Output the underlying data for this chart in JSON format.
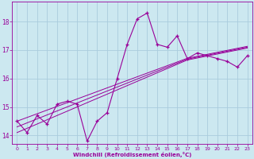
{
  "xlabel": "Windchill (Refroidissement éolien,°C)",
  "background_color": "#cce8f0",
  "line_color": "#990099",
  "grid_color": "#aaccdd",
  "x_data": [
    0,
    1,
    2,
    3,
    4,
    5,
    6,
    7,
    8,
    9,
    10,
    11,
    12,
    13,
    14,
    15,
    16,
    17,
    18,
    19,
    20,
    21,
    22,
    23
  ],
  "y_main": [
    14.5,
    14.1,
    14.7,
    14.4,
    15.1,
    15.2,
    15.1,
    13.8,
    14.5,
    14.8,
    16.0,
    17.2,
    18.1,
    18.3,
    17.2,
    17.1,
    17.5,
    16.7,
    16.9,
    16.8,
    16.7,
    16.6,
    16.4,
    16.8
  ],
  "y_reg1": [
    14.3,
    14.44,
    14.58,
    14.72,
    14.86,
    15.0,
    15.14,
    15.28,
    15.42,
    15.56,
    15.7,
    15.84,
    15.98,
    16.12,
    16.26,
    16.4,
    16.54,
    16.68,
    16.75,
    16.82,
    16.89,
    16.96,
    17.03,
    17.1
  ],
  "y_reg2": [
    14.1,
    14.25,
    14.4,
    14.55,
    14.7,
    14.85,
    15.0,
    15.15,
    15.3,
    15.45,
    15.6,
    15.75,
    15.9,
    16.05,
    16.2,
    16.35,
    16.5,
    16.65,
    16.72,
    16.79,
    16.86,
    16.93,
    17.0,
    17.07
  ],
  "y_reg3": [
    14.5,
    14.63,
    14.76,
    14.89,
    15.02,
    15.15,
    15.28,
    15.41,
    15.54,
    15.67,
    15.8,
    15.93,
    16.06,
    16.19,
    16.32,
    16.45,
    16.58,
    16.71,
    16.78,
    16.85,
    16.92,
    16.99,
    17.06,
    17.13
  ],
  "ylim": [
    13.7,
    18.7
  ],
  "yticks": [
    14,
    15,
    16,
    17,
    18
  ],
  "xticks": [
    0,
    1,
    2,
    3,
    4,
    5,
    6,
    7,
    8,
    9,
    10,
    11,
    12,
    13,
    14,
    15,
    16,
    17,
    18,
    19,
    20,
    21,
    22,
    23
  ]
}
